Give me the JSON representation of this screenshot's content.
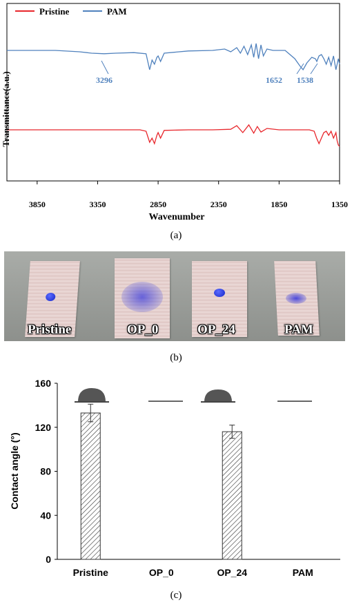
{
  "captions": {
    "a": "(a)",
    "b": "(b)",
    "c": "(c)"
  },
  "chart_data": [
    {
      "type": "line",
      "xlabel": "Wavenumber",
      "ylabel": "Transmittance(a.u.)",
      "x_reversed": true,
      "xlim": [
        4100,
        1350
      ],
      "xticks": [
        3850,
        3350,
        2850,
        2350,
        1850,
        1350
      ],
      "legend": "top-left",
      "series": [
        {
          "name": "Pristine",
          "color": "#e8262b",
          "x": [
            4100,
            3400,
            3000,
            2950,
            2920,
            2900,
            2880,
            2860,
            2850,
            2830,
            2800,
            2600,
            2400,
            2250,
            2200,
            2150,
            2100,
            2060,
            2030,
            2000,
            1950,
            1850,
            1700,
            1600,
            1560,
            1540,
            1520,
            1480,
            1460,
            1440,
            1420,
            1400,
            1380,
            1370,
            1360,
            1350
          ],
          "y": [
            0.0,
            0.0,
            0.0,
            -0.05,
            -0.45,
            -0.3,
            -0.5,
            -0.2,
            -0.1,
            -0.3,
            -0.02,
            0.0,
            0.0,
            0.02,
            0.15,
            -0.1,
            0.18,
            -0.12,
            0.12,
            -0.08,
            0.05,
            0.0,
            0.0,
            0.0,
            -0.05,
            -0.3,
            -0.5,
            -0.1,
            -0.05,
            -0.2,
            -0.05,
            -0.3,
            -0.1,
            -0.4,
            -0.55,
            -0.6
          ]
        },
        {
          "name": "PAM",
          "color": "#4f81bd",
          "x": [
            4100,
            3700,
            3500,
            3400,
            3296,
            3200,
            3050,
            2950,
            2920,
            2900,
            2880,
            2860,
            2850,
            2830,
            2800,
            2600,
            2400,
            2300,
            2250,
            2200,
            2170,
            2140,
            2110,
            2080,
            2060,
            2040,
            2020,
            2000,
            1980,
            1950,
            1900,
            1850,
            1800,
            1720,
            1680,
            1652,
            1620,
            1580,
            1550,
            1538,
            1520,
            1500,
            1480,
            1460,
            1440,
            1420,
            1400,
            1380,
            1360,
            1350
          ],
          "y": [
            0.0,
            0.0,
            -0.05,
            -0.1,
            -0.12,
            -0.1,
            -0.08,
            -0.12,
            -0.7,
            -0.35,
            -0.5,
            -0.25,
            -0.2,
            -0.4,
            -0.1,
            -0.02,
            0.0,
            0.05,
            -0.05,
            0.1,
            -0.1,
            0.15,
            -0.15,
            0.2,
            -0.25,
            0.25,
            -0.3,
            0.2,
            -0.2,
            0.05,
            0.0,
            0.0,
            0.0,
            -0.3,
            -0.55,
            -0.7,
            -0.45,
            -0.25,
            -0.3,
            -0.4,
            -0.2,
            -0.15,
            -0.3,
            -0.5,
            -0.25,
            -0.55,
            -0.2,
            -0.7,
            -0.3,
            -0.5
          ]
        }
      ],
      "annotations": [
        "3296",
        "1652",
        "1538"
      ]
    },
    {
      "type": "bar",
      "categories": [
        "Pristine",
        "OP_0",
        "OP_24",
        "PAM"
      ],
      "values": [
        133,
        0,
        116,
        0
      ],
      "errors": [
        8,
        0,
        6,
        0
      ],
      "ylabel": "Contact angle (°)",
      "ylim": [
        0,
        160
      ],
      "yticks": [
        "0",
        "40",
        "80",
        "120",
        "160"
      ],
      "grid": false
    }
  ],
  "photo_labels": [
    "Pristine",
    "OP_0",
    "OP_24",
    "PAM"
  ]
}
